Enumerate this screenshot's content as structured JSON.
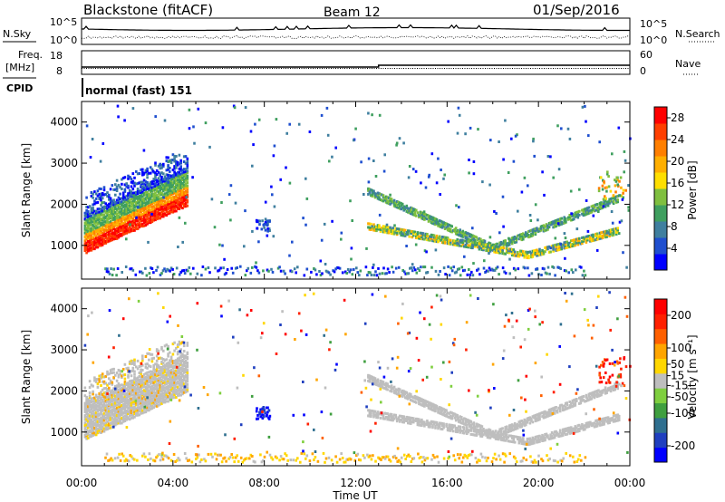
{
  "header": {
    "station": "Blackstone (fitACF)",
    "beam": "Beam 12",
    "date": "01/Sep/2016"
  },
  "params": {
    "nsky_label": "N.Sky",
    "nsearch_label": "N.Search",
    "noise_ticks": [
      "10^5",
      "10^0"
    ],
    "freq_label": "Freq.",
    "freq_unit": "[MHz]",
    "freq_ticks": [
      "18",
      "8"
    ],
    "nave_label": "Nave",
    "nave_ticks": [
      "60",
      "0"
    ],
    "cpid_label": "CPID",
    "cpid_value": "normal (fast) 151"
  },
  "colors": {
    "power_scale": [
      "#0000ff",
      "#1f4fcf",
      "#3f7f9f",
      "#3f9f5f",
      "#7fbf3f",
      "#ffdf00",
      "#ffaf00",
      "#ff7f00",
      "#ff3f00",
      "#ff0000"
    ],
    "velocity_scale": [
      "#0000ff",
      "#1f3fbf",
      "#2f6f8f",
      "#3f9f3f",
      "#7fcf3f",
      "#bebebe",
      "#ffd700",
      "#ffa500",
      "#ff6000",
      "#ff2000",
      "#ff0000"
    ]
  },
  "chart_data": [
    {
      "type": "heatmap",
      "title": "Power",
      "ylabel": "Slant Range [km]",
      "xlabel": "Time UT",
      "x_ticks": [
        "00:00",
        "04:00",
        "08:00",
        "12:00",
        "16:00",
        "20:00",
        "00:00"
      ],
      "y_ticks": [
        1000,
        2000,
        3000,
        4000
      ],
      "xlim_hours": [
        0,
        24
      ],
      "ylim_km": [
        180,
        4500
      ],
      "colorbar": {
        "label": "Power [dB]",
        "ticks": [
          4,
          8,
          12,
          16,
          20,
          24,
          28
        ],
        "range": [
          0,
          30
        ]
      }
    },
    {
      "type": "heatmap",
      "title": "Velocity",
      "ylabel": "Slant Range [km]",
      "xlabel": "Time UT",
      "x_ticks": [
        "00:00",
        "04:00",
        "08:00",
        "12:00",
        "16:00",
        "20:00",
        "00:00"
      ],
      "y_ticks": [
        1000,
        2000,
        3000,
        4000
      ],
      "xlim_hours": [
        0,
        24
      ],
      "ylim_km": [
        180,
        4500
      ],
      "colorbar": {
        "label": "Velocity [m s⁻¹]",
        "ticks": [
          200,
          100,
          50,
          15,
          -15,
          -50,
          -100,
          -200
        ],
        "range": [
          -250,
          250
        ]
      }
    }
  ]
}
